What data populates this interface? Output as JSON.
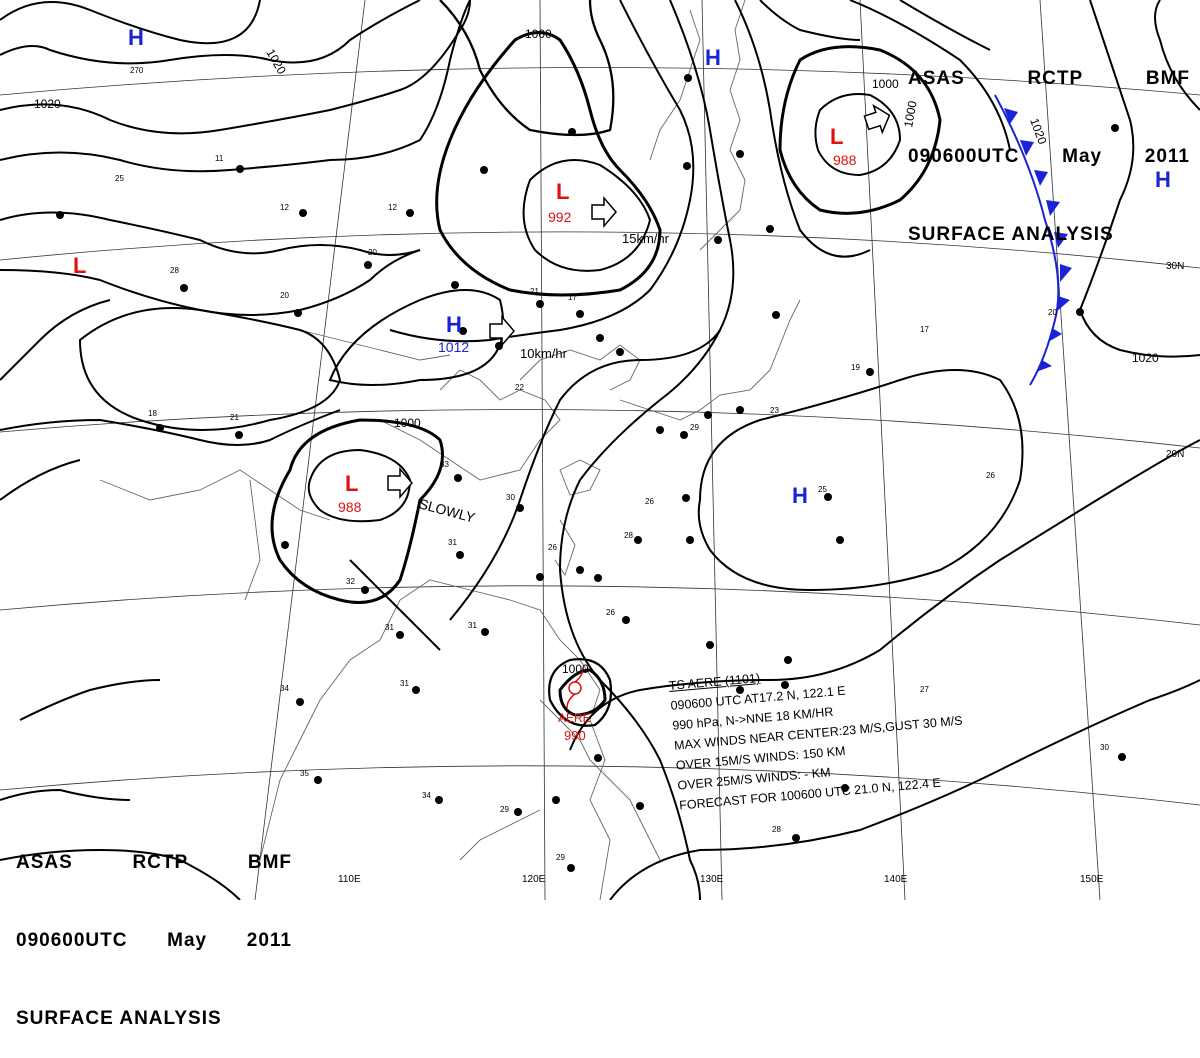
{
  "header": {
    "agency": "ASAS",
    "station": "RCTP",
    "office": "BMF",
    "time": "090600UTC",
    "month": "May",
    "year": "2011",
    "title": "SURFACE ANALYSIS"
  },
  "longitudes": [
    "110E",
    "120E",
    "130E",
    "140E",
    "150E"
  ],
  "latitudes": [
    "30N",
    "20N"
  ],
  "isobar_labels": [
    "1020",
    "1020",
    "1000",
    "1000",
    "1000",
    "1020",
    "1000"
  ],
  "pressure_centers": [
    {
      "type": "H",
      "value": ""
    },
    {
      "type": "H",
      "value": ""
    },
    {
      "type": "H",
      "value": ""
    },
    {
      "type": "H",
      "value": "1012"
    },
    {
      "type": "H",
      "value": ""
    },
    {
      "type": "L",
      "value": ""
    },
    {
      "type": "L",
      "value": "992"
    },
    {
      "type": "L",
      "value": "988"
    },
    {
      "type": "L",
      "value": "988"
    },
    {
      "type": "L",
      "value": "990"
    }
  ],
  "typhoon_label": "AERE",
  "motion_labels": [
    "15km/hr",
    "10km/hr",
    "SLOWLY"
  ],
  "typhoon_info": {
    "line1": "TS AERE (1101)",
    "line2": "090600 UTC AT17.2 N, 122.1 E",
    "line3": "990 hPa, N->NNE 18 KM/HR",
    "line4": "MAX WINDS NEAR CENTER:23 M/S,GUST 30 M/S",
    "line5": "OVER 15M/S WINDS: 150 KM",
    "line6": "OVER 25M/S WINDS: - KM",
    "line7": "FORECAST FOR 100600 UTC 21.0 N, 122.4 E"
  },
  "colors": {
    "high": "#1a23d6",
    "low": "#e01010",
    "front": "#1a23d6",
    "isobar": "#000000",
    "grid": "#222222",
    "coast": "#555555"
  }
}
